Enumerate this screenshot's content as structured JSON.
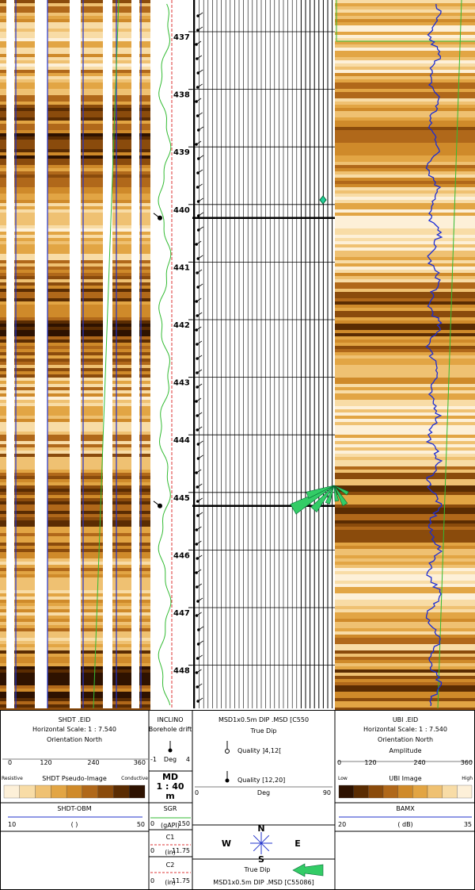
{
  "depth_track": {
    "labels": [
      437,
      438,
      439,
      440,
      441,
      442,
      443,
      444,
      445,
      446,
      447,
      448
    ]
  },
  "header": {
    "shdt": {
      "title": "SHDT .EID",
      "scale": "Horizontal Scale: 1 : 7.540",
      "orientation": "Orientation North",
      "axis": [
        "0",
        "120",
        "240",
        "360"
      ],
      "left": "Resistive",
      "image": "SHDT Pseudo-Image",
      "right": "Conductive",
      "curve": "SHDT-OBM",
      "min": "10",
      "unit": "( )",
      "max": "50"
    },
    "inclino": {
      "title": "INCLINO",
      "subtitle": "Borehole drift",
      "min": "-1",
      "unit": "Deg",
      "max": "4",
      "md": "MD",
      "md_scale": "1 : 40",
      "md_unit": "m",
      "sgr": {
        "name": "SGR",
        "min": "0",
        "unit": "(gAPI)",
        "max": "150"
      },
      "c1": {
        "name": "C1",
        "min": "0",
        "unit": "(in)",
        "max": "11.75"
      },
      "c2": {
        "name": "C2",
        "min": "0",
        "unit": "(in)",
        "max": "11.75"
      }
    },
    "dip": {
      "title": "MSD1x0.5m DIP .MSD [C550",
      "subtitle": "True Dip",
      "quality_low": "Quality ]4,12[",
      "quality_high": "Quality [12,20]",
      "min": "0",
      "unit": "Deg",
      "max": "90",
      "compass": {
        "n": "N",
        "w": "W",
        "e": "E",
        "s": "S"
      },
      "rose_title": "True Dip",
      "rose_source": "MSD1x0.5m DIP .MSD [C55086]"
    },
    "ubi": {
      "title": "UBI .EID",
      "scale": "Horizontal Scale: 1 : 7.540",
      "orientation": "Orientation North",
      "measure": "Amplitude",
      "axis": [
        "0",
        "120",
        "240",
        "360"
      ],
      "left": "Low",
      "image": "UBI Image",
      "right": "High",
      "curve": "BAMX",
      "min": "20",
      "unit": "( dB)",
      "max": "35"
    }
  }
}
